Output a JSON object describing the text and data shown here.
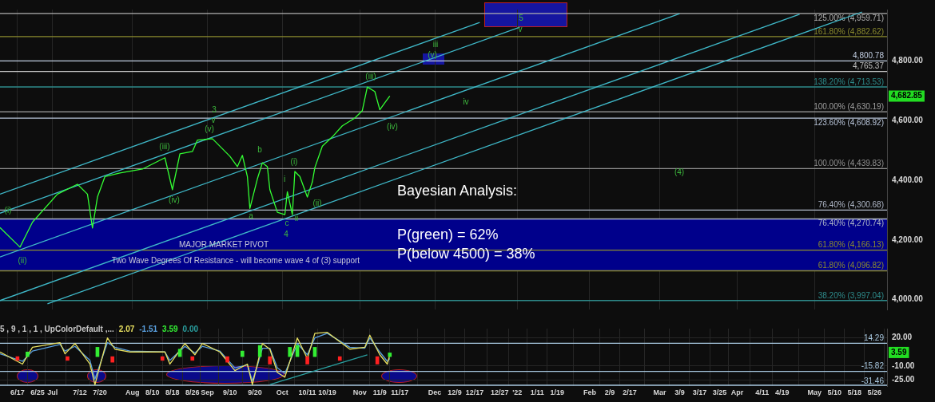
{
  "chart_data": [
    {
      "type": "line",
      "xlim": [
        "2021-06-10",
        "2022-05-31"
      ],
      "ylim": [
        3967,
        4973
      ],
      "xticks": [
        {
          "value": "2021-06-17",
          "label": null
        },
        {
          "value": "2021-07-01",
          "label": null
        },
        {
          "value": "2021-08-02",
          "label": null
        },
        {
          "value": "2021-09-01",
          "label": null
        },
        {
          "value": "2021-10-01",
          "label": null
        },
        {
          "value": "2021-11-01",
          "label": null
        },
        {
          "value": "2021-12-01",
          "label": null
        },
        {
          "value": "2022-01-03",
          "label": null
        },
        {
          "value": "2022-02-01",
          "label": null
        },
        {
          "value": "2022-03-01",
          "label": null
        },
        {
          "value": "2022-04-01",
          "label": null
        },
        {
          "value": "2022-05-02",
          "label": null
        }
      ],
      "yticks": [
        {
          "value": 4000,
          "label": "4,000.00"
        },
        {
          "value": 4200,
          "label": "4,200.00"
        },
        {
          "value": 4400,
          "label": "4,400.00"
        },
        {
          "value": 4600,
          "label": "4,600.00"
        },
        {
          "value": 4800,
          "label": "4,800.00"
        }
      ],
      "tick_labels": "y",
      "grid": "x",
      "legend": false,
      "marker": "none",
      "line_style": "solid",
      "series": [
        {
          "color": "#33ff33",
          "x": [
            "2021-06-10",
            "2021-06-18",
            "2021-06-23",
            "2021-07-03",
            "2021-07-11",
            "2021-07-15",
            "2021-07-17",
            "2021-07-19",
            "2021-07-22",
            "2021-07-28",
            "2021-08-06",
            "2021-08-15",
            "2021-08-18",
            "2021-08-21",
            "2021-08-26",
            "2021-08-28",
            "2021-09-03",
            "2021-09-10",
            "2021-09-13",
            "2021-09-15",
            "2021-09-17",
            "2021-09-18",
            "2021-09-21",
            "2021-09-23",
            "2021-09-25",
            "2021-09-26",
            "2021-09-29",
            "2021-10-02",
            "2021-10-03",
            "2021-10-05",
            "2021-10-06",
            "2021-10-08",
            "2021-10-11",
            "2021-10-13",
            "2021-10-14",
            "2021-10-17",
            "2021-10-21",
            "2021-10-25",
            "2021-10-30",
            "2021-11-02",
            "2021-11-04",
            "2021-11-07",
            "2021-11-09",
            "2021-11-11",
            "2021-11-13"
          ],
          "values": [
            4242,
            4176,
            4260,
            4354,
            4387,
            4354,
            4240,
            4344,
            4413,
            4425,
            4438,
            4476,
            4369,
            4489,
            4497,
            4535,
            4540,
            4481,
            4446,
            4484,
            4413,
            4306,
            4405,
            4459,
            4446,
            4369,
            4293,
            4285,
            4362,
            4285,
            4430,
            4413,
            4344,
            4395,
            4443,
            4515,
            4546,
            4583,
            4609,
            4634,
            4713,
            4698,
            4637,
            4660,
            4683
          ]
        },
        {
          "color": "#3fb8c8",
          "x": [
            "2021-06-10",
            "2021-12-19"
          ],
          "values": [
            4354,
            4930
          ]
        },
        {
          "color": "#3fb8c8",
          "x": [
            "2021-06-10",
            "2022-01-04"
          ],
          "values": [
            4290,
            4914
          ]
        },
        {
          "color": "#3fb8c8",
          "x": [
            "2021-06-10",
            "2022-03-09"
          ],
          "values": [
            4143,
            4959
          ]
        },
        {
          "color": "#3fb8c8",
          "x": [
            "2021-06-10",
            "2022-04-26"
          ],
          "values": [
            3997,
            4957
          ]
        },
        {
          "color": "#3fb8c8",
          "x": [
            "2021-06-29",
            "2022-05-21"
          ],
          "values": [
            3986,
            4965
          ]
        }
      ],
      "bands": [
        {
          "axis": "y",
          "from": 4096.82,
          "to": 4270.74,
          "color": "#00008b"
        }
      ],
      "ref_lines": [
        {
          "axis": "y",
          "value": 4959.71,
          "label": "125.00% (4,959.71)",
          "color": "#b0b0b0"
        },
        {
          "axis": "y",
          "value": 4882.62,
          "label": "161.80% (4,882.62)",
          "color": "#8b8b2e"
        },
        {
          "axis": "y",
          "value": 4800.78,
          "label": "4,800.78",
          "color": "#c0cce0"
        },
        {
          "axis": "y",
          "value": 4765.37,
          "label": "4,765.37",
          "color": "#c0c0c0"
        },
        {
          "axis": "y",
          "value": 4713.53,
          "label": "138.20% (4,713.53)",
          "color": "#2e8b8b"
        },
        {
          "axis": "y",
          "value": 4630.19,
          "label": "100.00% (4,630.19)",
          "color": "#a0a0a0"
        },
        {
          "axis": "y",
          "value": 4608.92,
          "label": "123.60% (4,608.92)",
          "color": "#b8c4d8"
        },
        {
          "axis": "y",
          "value": 4439.83,
          "label": "100.00% (4,439.83)",
          "color": "#909090"
        },
        {
          "axis": "y",
          "value": 4300.68,
          "label": "76.40% (4,300.68)",
          "color": "#b0b8c8"
        },
        {
          "axis": "y",
          "value": 4270.74,
          "label": "76.40% (4,270.74)",
          "color": "#b0b8c8"
        },
        {
          "axis": "y",
          "value": 4166.13,
          "label": "61.80% (4,166.13)",
          "color": "#8b8b2e"
        },
        {
          "axis": "y",
          "value": 4096.82,
          "label": "61.80% (4,096.82)",
          "color": "#8b8b2e"
        },
        {
          "axis": "y",
          "value": 3997.04,
          "label": "38.20% (3,997.04)",
          "color": "#2e8b8b"
        }
      ],
      "annotations": [
        "Bayesian Analysis:",
        "P(green) = 62%",
        "P(below 4500) = 38%",
        "MAJOR MARKET PIVOT",
        "Two Wave Degrees Of Resistance - will become wave 4 of (3) support",
        "4,682.85",
        "(i)",
        "(ii)",
        "(iii)",
        "(iv)",
        "(v)",
        "v",
        "3",
        "b",
        "a",
        "i",
        "c",
        "ii",
        "4",
        "(i)",
        "(ii)",
        "(iii)",
        "(iv)",
        "(v)",
        "iii",
        "iv",
        "v",
        "5",
        "(4)"
      ]
    },
    {
      "type": "line",
      "xlim": [
        "2021-06-10",
        "2022-05-31"
      ],
      "ylim": [
        -31.5,
        30
      ],
      "xticks": [
        {
          "value": "2021-06-17",
          "label": "6/17"
        },
        {
          "value": "2021-06-25",
          "label": "6/25"
        },
        {
          "value": "2021-07-01",
          "label": "Jul"
        },
        {
          "value": "2021-07-12",
          "label": "7/12"
        },
        {
          "value": "2021-07-20",
          "label": "7/20"
        },
        {
          "value": "2021-08-02",
          "label": "Aug"
        },
        {
          "value": "2021-08-10",
          "label": "8/10"
        },
        {
          "value": "2021-08-18",
          "label": "8/18"
        },
        {
          "value": "2021-08-26",
          "label": "8/26"
        },
        {
          "value": "2021-09-01",
          "label": "Sep"
        },
        {
          "value": "2021-09-10",
          "label": "9/10"
        },
        {
          "value": "2021-09-20",
          "label": "9/20"
        },
        {
          "value": "2021-10-01",
          "label": "Oct"
        },
        {
          "value": "2021-10-11",
          "label": "10/11"
        },
        {
          "value": "2021-10-19",
          "label": "10/19"
        },
        {
          "value": "2021-11-01",
          "label": "Nov"
        },
        {
          "value": "2021-11-09",
          "label": "11/9"
        },
        {
          "value": "2021-11-17",
          "label": "11/17"
        },
        {
          "value": "2021-12-01",
          "label": "Dec"
        },
        {
          "value": "2021-12-09",
          "label": "12/9"
        },
        {
          "value": "2021-12-17",
          "label": "12/17"
        },
        {
          "value": "2021-12-27",
          "label": "12/27"
        },
        {
          "value": "2022-01-03",
          "label": "'22"
        },
        {
          "value": "2022-01-11",
          "label": "1/11"
        },
        {
          "value": "2022-01-19",
          "label": "1/19"
        },
        {
          "value": "2022-02-01",
          "label": "Feb"
        },
        {
          "value": "2022-02-09",
          "label": "2/9"
        },
        {
          "value": "2022-02-17",
          "label": "2/17"
        },
        {
          "value": "2022-03-01",
          "label": "Mar"
        },
        {
          "value": "2022-03-09",
          "label": "3/9"
        },
        {
          "value": "2022-03-17",
          "label": "3/17"
        },
        {
          "value": "2022-03-25",
          "label": "3/25"
        },
        {
          "value": "2022-04-01",
          "label": "Apr"
        },
        {
          "value": "2022-04-11",
          "label": "4/11"
        },
        {
          "value": "2022-04-19",
          "label": "4/19"
        },
        {
          "value": "2022-05-02",
          "label": "May"
        },
        {
          "value": "2022-05-10",
          "label": "5/10"
        },
        {
          "value": "2022-05-18",
          "label": "5/18"
        },
        {
          "value": "2022-05-26",
          "label": "5/26"
        }
      ],
      "yticks": [
        {
          "value": 20,
          "label": "20.00"
        },
        {
          "value": -10,
          "label": "-10.00"
        },
        {
          "value": -25,
          "label": "-25.00"
        }
      ],
      "grid": true,
      "legend": false,
      "marker": "none",
      "line_style": "solid",
      "series": [
        {
          "color": "#e8e060",
          "x": [
            "2021-06-10",
            "2021-06-19",
            "2021-06-23",
            "2021-07-04",
            "2021-07-06",
            "2021-07-10",
            "2021-07-16",
            "2021-07-18",
            "2021-07-23",
            "2021-07-26",
            "2021-08-01",
            "2021-08-15",
            "2021-08-17",
            "2021-08-23",
            "2021-08-27",
            "2021-08-30",
            "2021-09-06",
            "2021-09-12",
            "2021-09-17",
            "2021-09-19",
            "2021-09-21",
            "2021-09-23",
            "2021-09-26",
            "2021-09-29",
            "2021-10-02",
            "2021-10-07",
            "2021-10-11",
            "2021-10-14",
            "2021-10-19",
            "2021-10-28",
            "2021-11-03",
            "2021-11-05",
            "2021-11-09",
            "2021-11-12",
            "2021-11-13"
          ],
          "values": [
            5,
            -8,
            10,
            15,
            3,
            14,
            -8,
            -30,
            20,
            8,
            5,
            5,
            -8,
            14,
            2,
            14,
            5,
            -15,
            -8,
            -30,
            -8,
            14,
            8,
            -17,
            -22,
            20,
            -2,
            25,
            26,
            8,
            10,
            23,
            2,
            -8,
            2
          ]
        },
        {
          "color": "#5aa0e0",
          "x": [
            "2021-06-10",
            "2021-06-19",
            "2021-06-23",
            "2021-07-04",
            "2021-07-06",
            "2021-07-10",
            "2021-07-16",
            "2021-07-18",
            "2021-07-23",
            "2021-07-26",
            "2021-08-01",
            "2021-08-15",
            "2021-08-17",
            "2021-08-23",
            "2021-08-27",
            "2021-08-30",
            "2021-09-06",
            "2021-09-12",
            "2021-09-17",
            "2021-09-19",
            "2021-09-21",
            "2021-09-23",
            "2021-09-26",
            "2021-09-29",
            "2021-10-02",
            "2021-10-07",
            "2021-10-11",
            "2021-10-14",
            "2021-10-19",
            "2021-10-28",
            "2021-11-03",
            "2021-11-05",
            "2021-11-09",
            "2021-11-12",
            "2021-11-13"
          ],
          "values": [
            3,
            -5,
            6,
            13,
            6,
            11,
            -4,
            -24,
            15,
            10,
            6,
            5,
            -4,
            11,
            4,
            11,
            6,
            -12,
            -9,
            -26,
            -10,
            9,
            9,
            -12,
            -18,
            14,
            2,
            20,
            25,
            10,
            9,
            20,
            5,
            -5,
            -2
          ]
        },
        {
          "type": "bar",
          "color": "#33ee33",
          "x": [
            "2021-06-17",
            "2021-06-21",
            "2021-07-07",
            "2021-07-19",
            "2021-07-25",
            "2021-08-14",
            "2021-08-21",
            "2021-08-26",
            "2021-09-09",
            "2021-09-15",
            "2021-09-22",
            "2021-09-26",
            "2021-10-04",
            "2021-10-07",
            "2021-10-11",
            "2021-10-14",
            "2021-10-24",
            "2021-11-08",
            "2021-11-13"
          ],
          "values": [
            -4,
            5,
            -4,
            10,
            -6,
            -4,
            8,
            -4,
            -6,
            6,
            12,
            -8,
            10,
            12,
            -8,
            10,
            -4,
            -8,
            4
          ],
          "colors": [
            "#ff2020",
            "#33ee33",
            "#ff2020",
            "#33ee33",
            "#ff2020",
            "#ff2020",
            "#33ee33",
            "#ff2020",
            "#ff2020",
            "#33ee33",
            "#33ee33",
            "#ff2020",
            "#33ee33",
            "#33ee33",
            "#ff2020",
            "#33ee33",
            "#ff2020",
            "#ff2020",
            "#33ee33"
          ]
        },
        {
          "color": "#2aa0a0",
          "x": [
            "2021-09-26",
            "2021-11-04"
          ],
          "values": [
            -30,
            2
          ]
        }
      ],
      "ref_lines": [
        {
          "axis": "y",
          "value": 14.29,
          "label": "14.29",
          "color": "#a8c8e0"
        },
        {
          "axis": "y",
          "value": -15.82,
          "label": "-15.82",
          "color": "#a8c8e0"
        },
        {
          "axis": "y",
          "value": -31.46,
          "label": "-31.46",
          "color": "#a8c8e0"
        }
      ],
      "annotations": [
        "5 , 9 , 1 , 1 , UpColorDefault ,...",
        "2.07",
        "-1.51",
        "3.59",
        "0.00",
        "3.59"
      ]
    }
  ]
}
